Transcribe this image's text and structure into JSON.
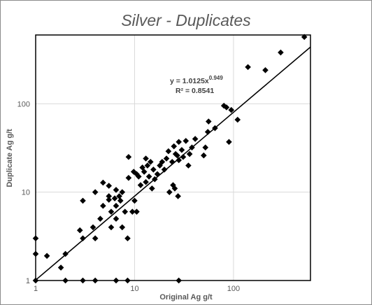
{
  "chart_data": {
    "type": "scatter",
    "title": "Silver - Duplicates",
    "xlabel": "Original Ag g/t",
    "ylabel": "Duplicate Ag g/t",
    "xscale": "log",
    "yscale": "log",
    "xlim": [
      1,
      600
    ],
    "ylim": [
      1,
      600
    ],
    "x_ticks": [
      {
        "value": 1,
        "label": "1"
      },
      {
        "value": 10,
        "label": "10"
      },
      {
        "value": 100,
        "label": "100"
      }
    ],
    "y_ticks": [
      {
        "value": 1,
        "label": "1"
      },
      {
        "value": 10,
        "label": "10"
      },
      {
        "value": 100,
        "label": "100"
      }
    ],
    "grid": true,
    "marker_color": "#000000",
    "trendline": {
      "type": "power",
      "a": 1.0125,
      "b": 0.949,
      "equation_prefix": "y = 1.0125x",
      "equation_exponent": "0.949",
      "r2_label": "R² = 0.8541"
    },
    "points": [
      [
        1.0,
        3.0
      ],
      [
        1.0,
        2.0
      ],
      [
        1.0,
        1.0
      ],
      [
        1.3,
        1.9
      ],
      [
        1.8,
        1.4
      ],
      [
        2.0,
        2.0
      ],
      [
        2.0,
        1.0
      ],
      [
        2.8,
        3.7
      ],
      [
        3.0,
        8.0
      ],
      [
        3.0,
        3.0
      ],
      [
        3.0,
        1.0
      ],
      [
        3.8,
        4.0
      ],
      [
        4.0,
        10.0
      ],
      [
        4.0,
        3.0
      ],
      [
        4.0,
        1.0
      ],
      [
        4.5,
        5.0
      ],
      [
        4.8,
        12.8
      ],
      [
        4.8,
        7.0
      ],
      [
        5.5,
        8.2
      ],
      [
        5.5,
        11.8
      ],
      [
        5.5,
        9.0
      ],
      [
        5.8,
        6.0
      ],
      [
        5.8,
        4.0
      ],
      [
        6.3,
        8.5
      ],
      [
        6.5,
        10.6
      ],
      [
        6.5,
        7.0
      ],
      [
        6.5,
        5.0
      ],
      [
        6.5,
        1.0
      ],
      [
        7.0,
        9.0
      ],
      [
        7.2,
        8.0
      ],
      [
        7.5,
        10.0
      ],
      [
        7.5,
        4.0
      ],
      [
        8.0,
        6.0
      ],
      [
        8.5,
        3.0
      ],
      [
        8.5,
        1.0
      ],
      [
        8.7,
        25.0
      ],
      [
        8.7,
        14.5
      ],
      [
        9.5,
        6.0
      ],
      [
        9.8,
        17.0
      ],
      [
        10.0,
        8.0
      ],
      [
        10.5,
        6.0
      ],
      [
        10.5,
        16.0
      ],
      [
        11.0,
        15.0
      ],
      [
        11.5,
        12.0
      ],
      [
        12.0,
        19.0
      ],
      [
        12.5,
        17.0
      ],
      [
        13.0,
        24.0
      ],
      [
        13.0,
        13.0
      ],
      [
        13.5,
        20.0
      ],
      [
        14.0,
        15.0
      ],
      [
        14.5,
        22.0
      ],
      [
        15.0,
        11.0
      ],
      [
        15.5,
        18.0
      ],
      [
        16.0,
        14.0
      ],
      [
        17.0,
        16.0
      ],
      [
        18.0,
        20.0
      ],
      [
        19.0,
        22.0
      ],
      [
        20.0,
        18.0
      ],
      [
        21.0,
        24.0
      ],
      [
        22.0,
        29.0
      ],
      [
        22.5,
        10.0
      ],
      [
        24.0,
        22.0
      ],
      [
        24.5,
        12.0
      ],
      [
        25.0,
        33.0
      ],
      [
        25.5,
        11.0
      ],
      [
        26.0,
        27.0
      ],
      [
        27.0,
        26.0
      ],
      [
        27.5,
        9.0
      ],
      [
        28.0,
        37.0
      ],
      [
        28.0,
        23.0
      ],
      [
        28.0,
        1.0
      ],
      [
        30.0,
        30.0
      ],
      [
        31.0,
        25.0
      ],
      [
        33.0,
        38.0
      ],
      [
        35.0,
        20.0
      ],
      [
        36.0,
        27.0
      ],
      [
        38.0,
        32.0
      ],
      [
        41.0,
        40.0
      ],
      [
        50.0,
        26.0
      ],
      [
        52.0,
        32.0
      ],
      [
        55.0,
        48.0
      ],
      [
        56.0,
        63.0
      ],
      [
        65.0,
        53.0
      ],
      [
        80.0,
        95.0
      ],
      [
        85.0,
        91.0
      ],
      [
        90.0,
        37.0
      ],
      [
        95.0,
        85.0
      ],
      [
        110.0,
        66.0
      ],
      [
        140.0,
        260.0
      ],
      [
        210.0,
        240.0
      ],
      [
        300.0,
        380.0
      ],
      [
        520.0,
        570.0
      ]
    ]
  }
}
